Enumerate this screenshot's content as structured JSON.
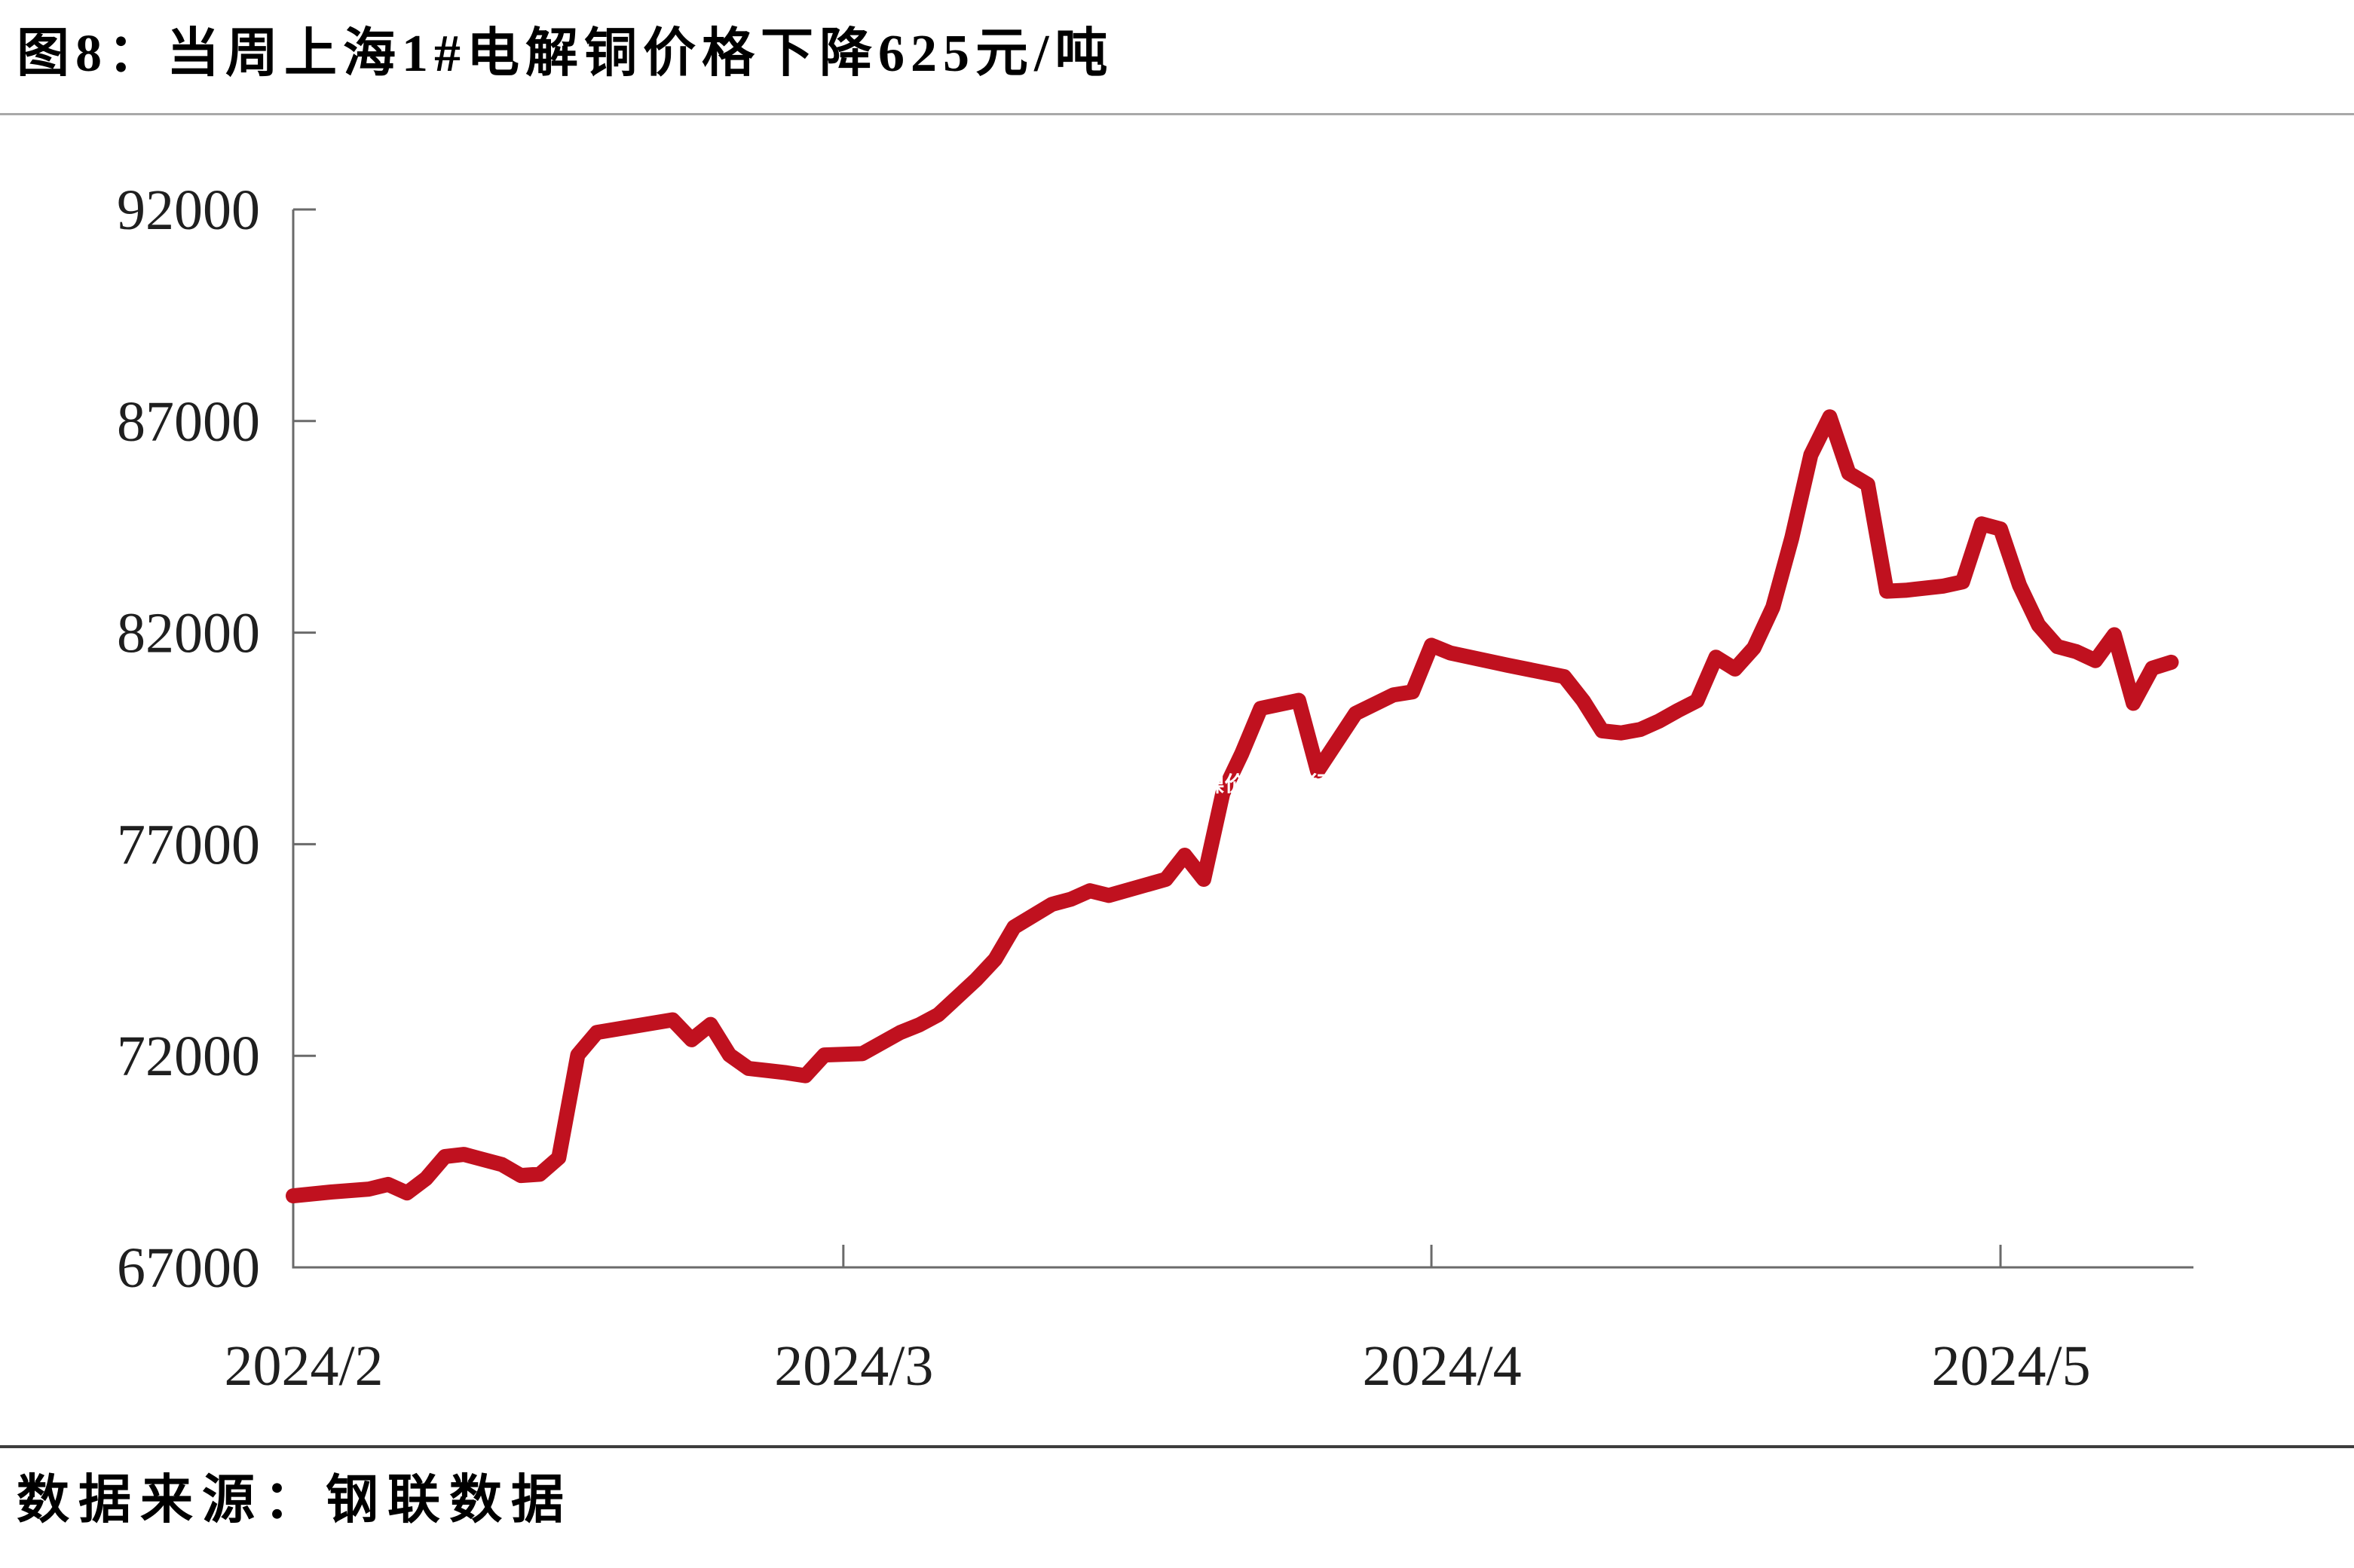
{
  "header": {
    "title": "图8：当周上海1#电解铜价格下降625元/吨"
  },
  "overlay_banner": {
    "text": "30日废镍价格最新行情,30日废镍价格最新行情深度解析",
    "bg_color": "#585f9e",
    "text_color": "#ffffff"
  },
  "footer": {
    "source_label": "数据来源：钢联数据"
  },
  "chart_data": {
    "type": "line",
    "title": "当周上海1#电解铜价格下降625元/吨",
    "ylabel": "",
    "xlabel": "",
    "ylim": [
      67000,
      92000
    ],
    "yticks": [
      67000,
      72000,
      77000,
      82000,
      87000,
      92000
    ],
    "xticks": [
      {
        "label": "2024/2",
        "date": "2024-02-01"
      },
      {
        "label": "2024/3",
        "date": "2024-03-01"
      },
      {
        "label": "2024/4",
        "date": "2024-04-01"
      },
      {
        "label": "2024/5",
        "date": "2024-05-01"
      }
    ],
    "grid": false,
    "legend_position": "none",
    "line_color": "#c0111f",
    "axis_color": "#6a6a6a",
    "series": [
      {
        "name": "上海1#电解铜价格(元/吨)",
        "color": "#c0111f",
        "points": [
          [
            "2024-02-01",
            68690
          ],
          [
            "2024-02-03",
            68780
          ],
          [
            "2024-02-05",
            68850
          ],
          [
            "2024-02-06",
            68960
          ],
          [
            "2024-02-07",
            68760
          ],
          [
            "2024-02-08",
            69100
          ],
          [
            "2024-02-09",
            69620
          ],
          [
            "2024-02-10",
            69670
          ],
          [
            "2024-02-12",
            69430
          ],
          [
            "2024-02-13",
            69170
          ],
          [
            "2024-02-14",
            69200
          ],
          [
            "2024-02-15",
            69590
          ],
          [
            "2024-02-16",
            72020
          ],
          [
            "2024-02-17",
            72550
          ],
          [
            "2024-02-19",
            72700
          ],
          [
            "2024-02-21",
            72850
          ],
          [
            "2024-02-22",
            72380
          ],
          [
            "2024-02-23",
            72740
          ],
          [
            "2024-02-24",
            72020
          ],
          [
            "2024-02-25",
            71700
          ],
          [
            "2024-02-27",
            71600
          ],
          [
            "2024-02-28",
            71530
          ],
          [
            "2024-02-29",
            72020
          ],
          [
            "2024-03-02",
            72050
          ],
          [
            "2024-03-04",
            72550
          ],
          [
            "2024-03-05",
            72730
          ],
          [
            "2024-03-06",
            72970
          ],
          [
            "2024-03-08",
            73800
          ],
          [
            "2024-03-09",
            74280
          ],
          [
            "2024-03-10",
            75040
          ],
          [
            "2024-03-12",
            75580
          ],
          [
            "2024-03-13",
            75700
          ],
          [
            "2024-03-14",
            75900
          ],
          [
            "2024-03-15",
            75790
          ],
          [
            "2024-03-18",
            76170
          ],
          [
            "2024-03-19",
            76740
          ],
          [
            "2024-03-20",
            76170
          ],
          [
            "2024-03-21",
            78200
          ],
          [
            "2024-03-22",
            79140
          ],
          [
            "2024-03-23",
            80210
          ],
          [
            "2024-03-25",
            80400
          ],
          [
            "2024-03-26",
            78730
          ],
          [
            "2024-03-28",
            80090
          ],
          [
            "2024-03-30",
            80530
          ],
          [
            "2024-03-31",
            80600
          ],
          [
            "2024-04-01",
            81700
          ],
          [
            "2024-04-02",
            81520
          ],
          [
            "2024-04-05",
            81230
          ],
          [
            "2024-04-08",
            80960
          ],
          [
            "2024-04-09",
            80390
          ],
          [
            "2024-04-10",
            79680
          ],
          [
            "2024-04-11",
            79630
          ],
          [
            "2024-04-12",
            79710
          ],
          [
            "2024-04-13",
            79910
          ],
          [
            "2024-04-14",
            80160
          ],
          [
            "2024-04-15",
            80390
          ],
          [
            "2024-04-16",
            81420
          ],
          [
            "2024-04-17",
            81140
          ],
          [
            "2024-04-18",
            81640
          ],
          [
            "2024-04-19",
            82600
          ],
          [
            "2024-04-20",
            84240
          ],
          [
            "2024-04-21",
            86200
          ],
          [
            "2024-04-22",
            87100
          ],
          [
            "2024-04-23",
            85770
          ],
          [
            "2024-04-24",
            85500
          ],
          [
            "2024-04-25",
            82980
          ],
          [
            "2024-04-26",
            83000
          ],
          [
            "2024-04-28",
            83100
          ],
          [
            "2024-04-29",
            83200
          ],
          [
            "2024-04-30",
            84570
          ],
          [
            "2024-05-01",
            84450
          ],
          [
            "2024-05-02",
            83120
          ],
          [
            "2024-05-03",
            82180
          ],
          [
            "2024-05-04",
            81670
          ],
          [
            "2024-05-05",
            81550
          ],
          [
            "2024-05-06",
            81340
          ],
          [
            "2024-05-07",
            81950
          ],
          [
            "2024-05-08",
            80330
          ],
          [
            "2024-05-09",
            81160
          ],
          [
            "2024-05-10",
            81300
          ]
        ]
      }
    ]
  }
}
